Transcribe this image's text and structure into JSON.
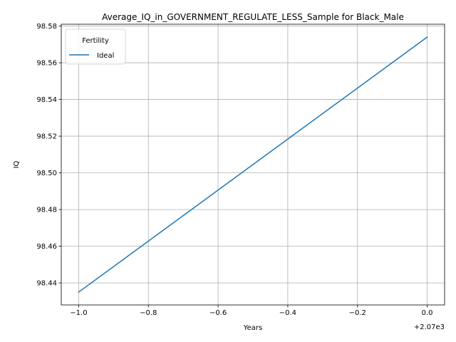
{
  "chart_data": {
    "type": "line",
    "title": "Average_IQ_in_GOVERNMENT_REGULATE_LESS_Sample for Black_Male",
    "xlabel": "Years",
    "ylabel": "IQ",
    "x_offset_label": "+2.07e3",
    "x_tick_labels": [
      "−1.0",
      "−0.8",
      "−0.6",
      "−0.4",
      "−0.2",
      "0.0"
    ],
    "y_tick_labels": [
      "98.44",
      "98.46",
      "98.48",
      "98.50",
      "98.52",
      "98.54",
      "98.56",
      "98.58"
    ],
    "xlim": [
      2068.95,
      2070.05
    ],
    "ylim": [
      98.428,
      98.581
    ],
    "grid": true,
    "legend": {
      "title": "Fertility",
      "placement": "upper-left"
    },
    "series": [
      {
        "name": "Ideal",
        "color": "#1f77b4",
        "x": [
          2069,
          2070
        ],
        "y": [
          98.435,
          98.574
        ]
      }
    ]
  }
}
